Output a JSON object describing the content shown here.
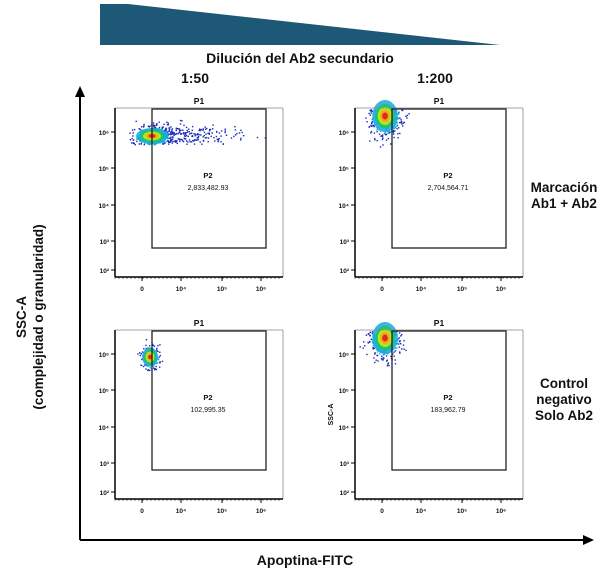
{
  "header": {
    "title": "Dilución del Ab2 secundario",
    "columns": [
      "1:50",
      "1:200"
    ],
    "wedge_color": "#1d5877"
  },
  "rows": [
    {
      "lines": [
        "Marcación",
        "Ab1 + Ab2"
      ]
    },
    {
      "lines": [
        "Control",
        "negativo",
        "Solo Ab2"
      ]
    }
  ],
  "axes": {
    "x_label": "Apoptina-FITC",
    "y_label_line1": "SSC-A",
    "y_label_line2": "(complejidad o granularidad)"
  },
  "chart_data": [
    {
      "type": "scatter",
      "subtype": "density",
      "column": "1:50",
      "row": "Marcación Ab1 + Ab2",
      "gate_outer": "P1",
      "gate": "P2",
      "gate_value": "2,833,482.93",
      "y_axis_label": "",
      "x_ticks": [
        "0",
        "10⁴",
        "10⁵",
        "10⁶"
      ],
      "y_ticks": [
        "10⁶",
        "10⁵",
        "10⁴",
        "10³",
        "10²"
      ],
      "y_scale": "log",
      "x_scale": "biexponential"
    },
    {
      "type": "scatter",
      "subtype": "density",
      "column": "1:200",
      "row": "Marcación Ab1 + Ab2",
      "gate_outer": "P1",
      "gate": "P2",
      "gate_value": "2,704,564.71",
      "y_axis_label": "",
      "x_ticks": [
        "0",
        "10⁴",
        "10⁵",
        "10⁶"
      ],
      "y_ticks": [
        "10⁶",
        "10⁵",
        "10⁴",
        "10³",
        "10²"
      ],
      "y_scale": "log",
      "x_scale": "biexponential"
    },
    {
      "type": "scatter",
      "subtype": "density",
      "column": "1:50",
      "row": "Control negativo Solo Ab2",
      "gate_outer": "P1",
      "gate": "P2",
      "gate_value": "102,995.35",
      "y_axis_label": "",
      "x_ticks": [
        "0",
        "10⁴",
        "10⁵",
        "10⁶"
      ],
      "y_ticks": [
        "10⁶",
        "10⁵",
        "10⁴",
        "10³",
        "10²"
      ],
      "y_scale": "log",
      "x_scale": "biexponential"
    },
    {
      "type": "scatter",
      "subtype": "density",
      "column": "1:200",
      "row": "Control negativo Solo Ab2",
      "gate_outer": "P1",
      "gate": "P2",
      "gate_value": "183,962.79",
      "y_axis_label": "SSC-A",
      "x_ticks": [
        "0",
        "10⁴",
        "10⁵",
        "10⁶"
      ],
      "y_ticks": [
        "10⁶",
        "10⁵",
        "10⁴",
        "10³",
        "10²"
      ],
      "y_scale": "log",
      "x_scale": "biexponential"
    }
  ]
}
